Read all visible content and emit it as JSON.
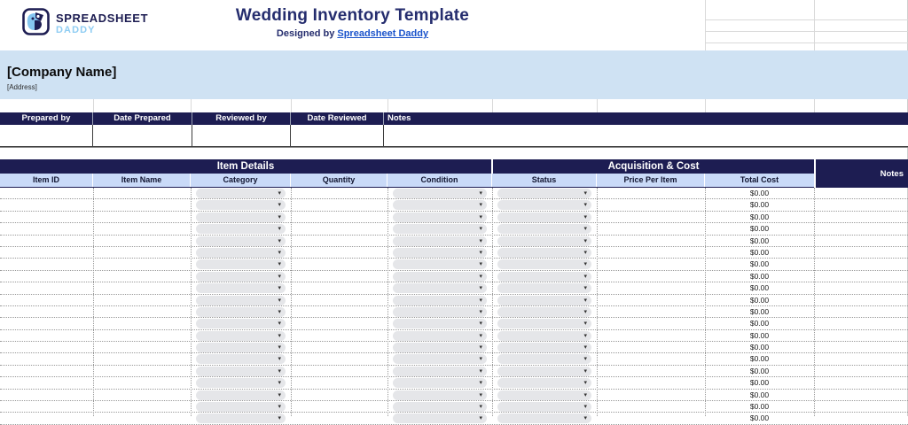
{
  "brand": {
    "logo_icon": "dog-face",
    "logo_text_top": "SPREADSHEET",
    "logo_text_bottom": "DADDY"
  },
  "header": {
    "title": "Wedding Inventory Template",
    "designed_by_prefix": "Designed by ",
    "designed_by_link": "Spreadsheet Daddy"
  },
  "company": {
    "name": "[Company Name]",
    "address": "[Address]"
  },
  "meta_table": {
    "headers": [
      "Prepared by",
      "Date Prepared",
      "Reviewed by",
      "Date Reviewed",
      "Notes"
    ],
    "values": [
      "",
      "",
      "",
      "",
      ""
    ]
  },
  "inventory_table": {
    "group_headers": {
      "item_details": "Item Details",
      "acquisition_cost": "Acquisition & Cost",
      "notes": "Notes"
    },
    "columns": [
      "Item ID",
      "Item Name",
      "Category",
      "Quantity",
      "Condition",
      "Status",
      "Price Per Item",
      "Total Cost"
    ],
    "dropdown_arrow": "▾",
    "rows": [
      {
        "item_id": "",
        "item_name": "",
        "category": "",
        "quantity": "",
        "condition": "",
        "status": "",
        "price_per_item": "",
        "total_cost": "$0.00",
        "notes": ""
      },
      {
        "item_id": "",
        "item_name": "",
        "category": "",
        "quantity": "",
        "condition": "",
        "status": "",
        "price_per_item": "",
        "total_cost": "$0.00",
        "notes": ""
      },
      {
        "item_id": "",
        "item_name": "",
        "category": "",
        "quantity": "",
        "condition": "",
        "status": "",
        "price_per_item": "",
        "total_cost": "$0.00",
        "notes": ""
      },
      {
        "item_id": "",
        "item_name": "",
        "category": "",
        "quantity": "",
        "condition": "",
        "status": "",
        "price_per_item": "",
        "total_cost": "$0.00",
        "notes": ""
      },
      {
        "item_id": "",
        "item_name": "",
        "category": "",
        "quantity": "",
        "condition": "",
        "status": "",
        "price_per_item": "",
        "total_cost": "$0.00",
        "notes": ""
      },
      {
        "item_id": "",
        "item_name": "",
        "category": "",
        "quantity": "",
        "condition": "",
        "status": "",
        "price_per_item": "",
        "total_cost": "$0.00",
        "notes": ""
      },
      {
        "item_id": "",
        "item_name": "",
        "category": "",
        "quantity": "",
        "condition": "",
        "status": "",
        "price_per_item": "",
        "total_cost": "$0.00",
        "notes": ""
      },
      {
        "item_id": "",
        "item_name": "",
        "category": "",
        "quantity": "",
        "condition": "",
        "status": "",
        "price_per_item": "",
        "total_cost": "$0.00",
        "notes": ""
      },
      {
        "item_id": "",
        "item_name": "",
        "category": "",
        "quantity": "",
        "condition": "",
        "status": "",
        "price_per_item": "",
        "total_cost": "$0.00",
        "notes": ""
      },
      {
        "item_id": "",
        "item_name": "",
        "category": "",
        "quantity": "",
        "condition": "",
        "status": "",
        "price_per_item": "",
        "total_cost": "$0.00",
        "notes": ""
      },
      {
        "item_id": "",
        "item_name": "",
        "category": "",
        "quantity": "",
        "condition": "",
        "status": "",
        "price_per_item": "",
        "total_cost": "$0.00",
        "notes": ""
      },
      {
        "item_id": "",
        "item_name": "",
        "category": "",
        "quantity": "",
        "condition": "",
        "status": "",
        "price_per_item": "",
        "total_cost": "$0.00",
        "notes": ""
      },
      {
        "item_id": "",
        "item_name": "",
        "category": "",
        "quantity": "",
        "condition": "",
        "status": "",
        "price_per_item": "",
        "total_cost": "$0.00",
        "notes": ""
      },
      {
        "item_id": "",
        "item_name": "",
        "category": "",
        "quantity": "",
        "condition": "",
        "status": "",
        "price_per_item": "",
        "total_cost": "$0.00",
        "notes": ""
      },
      {
        "item_id": "",
        "item_name": "",
        "category": "",
        "quantity": "",
        "condition": "",
        "status": "",
        "price_per_item": "",
        "total_cost": "$0.00",
        "notes": ""
      },
      {
        "item_id": "",
        "item_name": "",
        "category": "",
        "quantity": "",
        "condition": "",
        "status": "",
        "price_per_item": "",
        "total_cost": "$0.00",
        "notes": ""
      },
      {
        "item_id": "",
        "item_name": "",
        "category": "",
        "quantity": "",
        "condition": "",
        "status": "",
        "price_per_item": "",
        "total_cost": "$0.00",
        "notes": ""
      },
      {
        "item_id": "",
        "item_name": "",
        "category": "",
        "quantity": "",
        "condition": "",
        "status": "",
        "price_per_item": "",
        "total_cost": "$0.00",
        "notes": ""
      },
      {
        "item_id": "",
        "item_name": "",
        "category": "",
        "quantity": "",
        "condition": "",
        "status": "",
        "price_per_item": "",
        "total_cost": "$0.00",
        "notes": ""
      },
      {
        "item_id": "",
        "item_name": "",
        "category": "",
        "quantity": "",
        "condition": "",
        "status": "",
        "price_per_item": "",
        "total_cost": "$0.00",
        "notes": ""
      }
    ]
  },
  "colors": {
    "navy": "#1d1d52",
    "title_navy": "#252d6e",
    "band_blue": "#cfe2f3",
    "header_blue": "#c9daf8",
    "pill_gray": "#e5e6e9",
    "link_blue": "#1a53cb",
    "logo_blue": "#8fcdf3",
    "dotted_border": "#999999",
    "gridline": "#d9d9d9"
  }
}
